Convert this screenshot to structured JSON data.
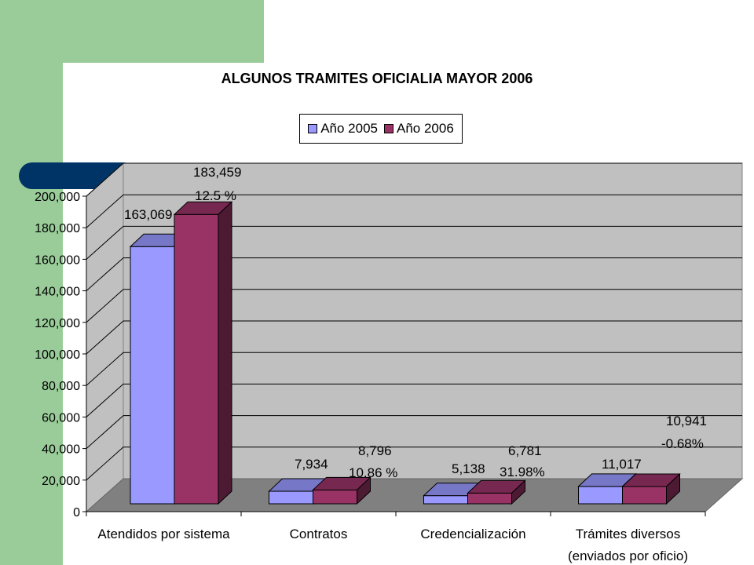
{
  "chart_data": {
    "type": "bar",
    "title": "ALGUNOS TRAMITES OFICIALIA MAYOR 2006",
    "categories": [
      "Atendidos por sistema",
      "Contratos",
      "Credencialización",
      "Trámites diversos"
    ],
    "category_lines": [
      [
        "Atendidos por sistema"
      ],
      [
        "Contratos"
      ],
      [
        "Credencialización"
      ],
      [
        "Trámites diversos",
        "(enviados por oficio)"
      ]
    ],
    "series": [
      {
        "name": "Año 2005",
        "color": "#9999ff",
        "values": [
          163069,
          7934,
          5138,
          11017
        ]
      },
      {
        "name": "Año 2006",
        "color": "#993366",
        "values": [
          183459,
          8796,
          6781,
          10941
        ]
      }
    ],
    "value_labels": {
      "Año 2005": [
        "163,069",
        "7,934",
        "5,138",
        "11,017"
      ],
      "Año 2006": [
        "183,459",
        "8,796",
        "6,781",
        "10,941"
      ]
    },
    "percent_labels": [
      "12.5 %",
      "10.86 %",
      "31.98%",
      "-0.68%"
    ],
    "ylim": [
      0,
      200000
    ],
    "yticks": [
      "0",
      "20,000",
      "40,000",
      "60,000",
      "80,000",
      "100,000",
      "120,000",
      "140,000",
      "160,000",
      "180,000",
      "200,000"
    ],
    "ytick_values": [
      0,
      20000,
      40000,
      60000,
      80000,
      100000,
      120000,
      140000,
      160000,
      180000,
      200000
    ],
    "grid": true,
    "legend_position": "top",
    "wall_color": "#c0c0c0",
    "floor_color": "#808080"
  }
}
